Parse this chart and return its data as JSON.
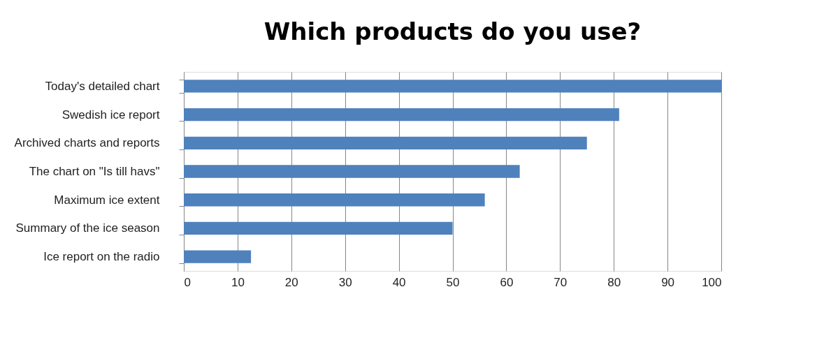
{
  "chart_data": {
    "type": "bar",
    "orientation": "horizontal",
    "title": "Which products do you use?",
    "categories": [
      "Today's detailed chart",
      "Swedish ice report",
      "Archived charts and reports",
      "The chart on \"Is till havs\"",
      "Maximum ice extent",
      "Summary of the ice season",
      "Ice report on the radio"
    ],
    "values": [
      100,
      81,
      75,
      62.5,
      56,
      50,
      12.5
    ],
    "color": "#4f81bd",
    "xlim": [
      0,
      100
    ],
    "xticks": [
      0,
      10,
      20,
      30,
      40,
      50,
      60,
      70,
      80,
      90,
      100
    ],
    "grid": "x"
  }
}
